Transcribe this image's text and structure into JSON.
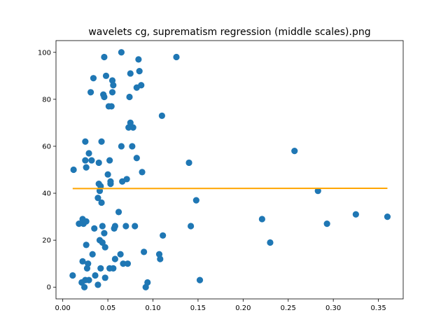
{
  "chart_data": {
    "type": "scatter",
    "title": "wavelets cg, suprematism regression (middle scales).png",
    "xlabel": "",
    "ylabel": "",
    "xlim": [
      -0.0075,
      0.3775
    ],
    "ylim": [
      -5,
      105
    ],
    "x_ticks": [
      0.0,
      0.05,
      0.1,
      0.15,
      0.2,
      0.25,
      0.3,
      0.35
    ],
    "x_tick_labels": [
      "0.00",
      "0.05",
      "0.10",
      "0.15",
      "0.20",
      "0.25",
      "0.30",
      "0.35"
    ],
    "y_ticks": [
      0,
      20,
      40,
      60,
      80,
      100
    ],
    "y_tick_labels": [
      "0",
      "20",
      "40",
      "60",
      "80",
      "100"
    ],
    "grid": false,
    "colors": {
      "points": "#1f77b4",
      "regression": "#ffa500"
    },
    "points": [
      [
        0.011,
        5
      ],
      [
        0.012,
        50
      ],
      [
        0.018,
        27
      ],
      [
        0.021,
        2
      ],
      [
        0.022,
        11
      ],
      [
        0.022,
        29
      ],
      [
        0.023,
        27
      ],
      [
        0.024,
        0
      ],
      [
        0.025,
        3
      ],
      [
        0.025,
        54
      ],
      [
        0.025,
        62
      ],
      [
        0.026,
        28
      ],
      [
        0.026,
        51
      ],
      [
        0.026,
        18
      ],
      [
        0.027,
        8
      ],
      [
        0.028,
        10
      ],
      [
        0.029,
        3
      ],
      [
        0.029,
        57
      ],
      [
        0.031,
        83
      ],
      [
        0.032,
        54
      ],
      [
        0.033,
        14
      ],
      [
        0.034,
        89
      ],
      [
        0.035,
        25
      ],
      [
        0.036,
        5
      ],
      [
        0.039,
        1
      ],
      [
        0.039,
        38
      ],
      [
        0.04,
        44
      ],
      [
        0.04,
        53
      ],
      [
        0.041,
        41
      ],
      [
        0.041,
        20
      ],
      [
        0.042,
        8
      ],
      [
        0.042,
        43
      ],
      [
        0.043,
        36
      ],
      [
        0.043,
        62
      ],
      [
        0.044,
        19
      ],
      [
        0.044,
        26
      ],
      [
        0.045,
        82
      ],
      [
        0.046,
        98
      ],
      [
        0.046,
        81
      ],
      [
        0.046,
        23
      ],
      [
        0.047,
        4
      ],
      [
        0.047,
        17
      ],
      [
        0.048,
        90
      ],
      [
        0.05,
        48
      ],
      [
        0.051,
        77
      ],
      [
        0.052,
        54
      ],
      [
        0.052,
        8
      ],
      [
        0.053,
        45
      ],
      [
        0.053,
        44
      ],
      [
        0.054,
        77
      ],
      [
        0.055,
        88
      ],
      [
        0.055,
        83
      ],
      [
        0.056,
        86
      ],
      [
        0.056,
        8
      ],
      [
        0.057,
        25
      ],
      [
        0.058,
        26
      ],
      [
        0.058,
        12
      ],
      [
        0.062,
        32
      ],
      [
        0.064,
        14
      ],
      [
        0.065,
        100
      ],
      [
        0.065,
        60
      ],
      [
        0.066,
        45
      ],
      [
        0.067,
        10
      ],
      [
        0.07,
        26
      ],
      [
        0.071,
        46
      ],
      [
        0.072,
        10
      ],
      [
        0.073,
        68
      ],
      [
        0.074,
        81
      ],
      [
        0.075,
        91
      ],
      [
        0.075,
        70
      ],
      [
        0.077,
        60
      ],
      [
        0.078,
        68
      ],
      [
        0.08,
        26
      ],
      [
        0.082,
        55
      ],
      [
        0.082,
        85
      ],
      [
        0.084,
        97
      ],
      [
        0.085,
        92
      ],
      [
        0.087,
        86
      ],
      [
        0.088,
        49
      ],
      [
        0.09,
        15
      ],
      [
        0.092,
        0
      ],
      [
        0.094,
        2
      ],
      [
        0.107,
        14
      ],
      [
        0.108,
        12
      ],
      [
        0.11,
        73
      ],
      [
        0.111,
        22
      ],
      [
        0.126,
        98
      ],
      [
        0.14,
        53
      ],
      [
        0.142,
        26
      ],
      [
        0.148,
        37
      ],
      [
        0.152,
        3
      ],
      [
        0.221,
        29
      ],
      [
        0.23,
        19
      ],
      [
        0.257,
        58
      ],
      [
        0.283,
        41
      ],
      [
        0.293,
        27
      ],
      [
        0.325,
        31
      ],
      [
        0.36,
        30
      ]
    ],
    "regression_line": {
      "x": [
        0.011,
        0.36
      ],
      "y": [
        42.0,
        42.1
      ]
    }
  }
}
